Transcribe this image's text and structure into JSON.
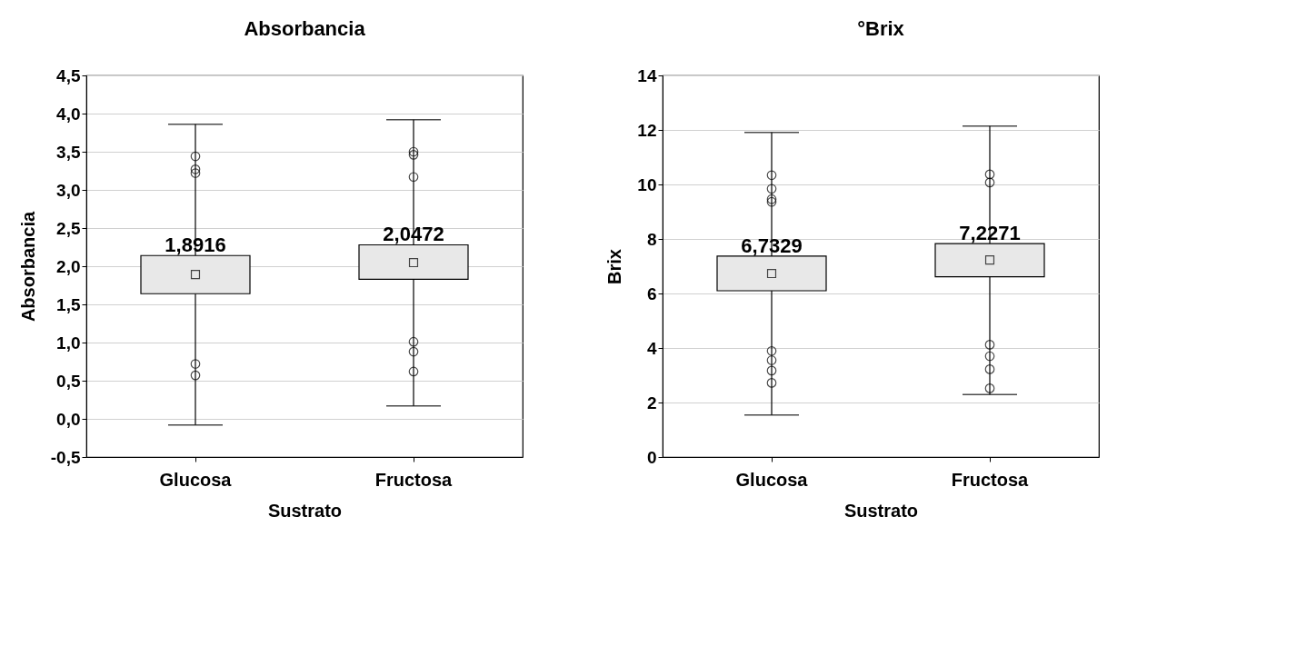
{
  "chart_data": [
    {
      "type": "box",
      "title": "Absorbancia",
      "xlabel": "Sustrato",
      "ylabel": "Absorbancia",
      "categories": [
        "Glucosa",
        "Fructosa"
      ],
      "boxes": [
        {
          "low": -0.08,
          "q1": 1.64,
          "median": 1.8916,
          "q3": 2.14,
          "high": 3.86,
          "outliers": [
            3.44,
            3.27,
            3.22,
            0.72,
            0.57
          ]
        },
        {
          "low": 0.17,
          "q1": 1.83,
          "median": 2.0472,
          "q3": 2.28,
          "high": 3.92,
          "outliers": [
            3.5,
            3.46,
            3.17,
            1.01,
            0.88,
            0.62
          ]
        }
      ],
      "value_labels": [
        "1,8916",
        "2,0472"
      ],
      "ylim": [
        -0.5,
        4.5
      ],
      "yticks": [
        {
          "value": -0.5,
          "label": "-0,5"
        },
        {
          "value": 0,
          "label": "0,0"
        },
        {
          "value": 0.5,
          "label": "0,5"
        },
        {
          "value": 1,
          "label": "1,0"
        },
        {
          "value": 1.5,
          "label": "1,5"
        },
        {
          "value": 2,
          "label": "2,0"
        },
        {
          "value": 2.5,
          "label": "2,5"
        },
        {
          "value": 3,
          "label": "3,0"
        },
        {
          "value": 3.5,
          "label": "3,5"
        },
        {
          "value": 4,
          "label": "4,0"
        },
        {
          "value": 4.5,
          "label": "4,5"
        }
      ],
      "grid": "y"
    },
    {
      "type": "box",
      "title": "°Brix",
      "xlabel": "Sustrato",
      "ylabel": "Brix",
      "categories": [
        "Glucosa",
        "Fructosa"
      ],
      "boxes": [
        {
          "low": 1.54,
          "q1": 6.1,
          "median": 6.7329,
          "q3": 7.37,
          "high": 11.91,
          "outliers": [
            10.34,
            9.84,
            9.46,
            9.36,
            3.89,
            3.55,
            3.17,
            2.72
          ]
        },
        {
          "low": 2.29,
          "q1": 6.61,
          "median": 7.2271,
          "q3": 7.83,
          "high": 12.14,
          "outliers": [
            10.37,
            10.07,
            4.12,
            3.7,
            3.22,
            2.52
          ]
        }
      ],
      "value_labels": [
        "6,7329",
        "7,2271"
      ],
      "ylim": [
        0,
        14
      ],
      "yticks": [
        0,
        2,
        4,
        6,
        8,
        10,
        12,
        14
      ],
      "grid": "y"
    }
  ]
}
